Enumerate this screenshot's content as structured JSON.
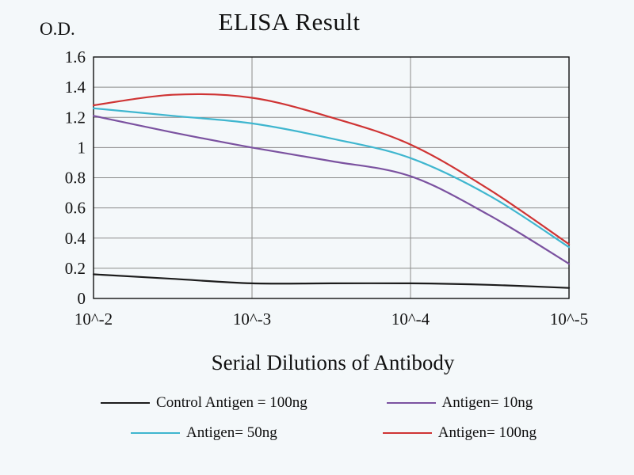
{
  "chart_data": {
    "type": "line",
    "title": "ELISA Result",
    "ylabel": "O.D.",
    "xlabel": "Serial Dilutions of Antibody",
    "x_ticklabels": [
      "10^-2",
      "10^-3",
      "10^-4",
      "10^-5"
    ],
    "ylim": [
      0,
      1.6
    ],
    "yticks": [
      0,
      0.2,
      0.4,
      0.6,
      0.8,
      1,
      1.2,
      1.4,
      1.6
    ],
    "grid": true,
    "legend_position": "bottom",
    "x": [
      0,
      0.5,
      1,
      1.5,
      2,
      2.5,
      3
    ],
    "series": [
      {
        "name": "Control Antigen = 100ng",
        "color": "#1c1c1c",
        "values": [
          0.16,
          0.13,
          0.1,
          0.1,
          0.1,
          0.09,
          0.07
        ]
      },
      {
        "name": "Antigen= 10ng",
        "color": "#7b52a0",
        "values": [
          1.21,
          1.1,
          1.0,
          0.91,
          0.81,
          0.55,
          0.23
        ]
      },
      {
        "name": "Antigen= 50ng",
        "color": "#3fb6cf",
        "values": [
          1.26,
          1.21,
          1.16,
          1.06,
          0.93,
          0.68,
          0.34
        ]
      },
      {
        "name": "Antigen= 100ng",
        "color": "#cf3434",
        "values": [
          1.28,
          1.35,
          1.33,
          1.2,
          1.02,
          0.72,
          0.36
        ]
      }
    ],
    "frame_color": "#111111",
    "grid_color": "#8b8b8b"
  }
}
